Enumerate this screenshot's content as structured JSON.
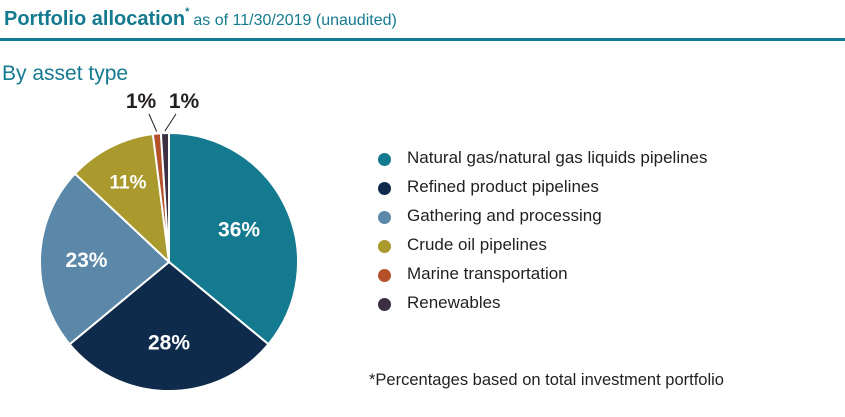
{
  "header": {
    "title_bold": "Portfolio allocation",
    "title_mark": "*",
    "title_rest": "as of 11/30/2019 (unaudited)"
  },
  "section_title": "By asset type",
  "footnote": "*Percentages based on total investment portfolio",
  "chart_data": {
    "type": "pie",
    "title": "By asset type",
    "categories": [
      "Natural gas/natural gas liquids pipelines",
      "Refined product pipelines",
      "Gathering and processing",
      "Crude oil pipelines",
      "Marine transportation",
      "Renewables"
    ],
    "values": [
      36,
      28,
      23,
      11,
      1,
      1
    ],
    "labels": [
      "36%",
      "28%",
      "23%",
      "11%",
      "1%",
      "1%"
    ],
    "colors": [
      "#147a8f",
      "#0f2b4b",
      "#5b88a9",
      "#aa9a2d",
      "#b5512a",
      "#3a2f43"
    ],
    "legend": "right"
  }
}
